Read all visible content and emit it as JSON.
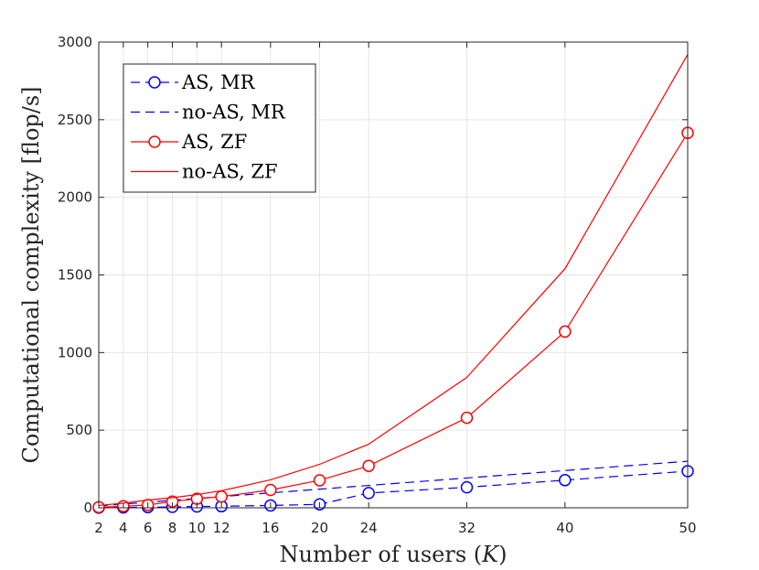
{
  "chart_data": {
    "type": "line",
    "title": "",
    "xlabel": "Number of users (K)",
    "xlabel_parts": [
      "Number of users (",
      "K",
      ")"
    ],
    "ylabel": "Computational complexity [flop/s]",
    "xlim": [
      2,
      50
    ],
    "ylim": [
      0,
      3000
    ],
    "x_ticks": [
      2,
      4,
      6,
      8,
      10,
      12,
      16,
      20,
      24,
      32,
      40,
      50
    ],
    "y_ticks": [
      0,
      500,
      1000,
      1500,
      2000,
      2500,
      3000
    ],
    "grid": true,
    "legend_position": "top-left",
    "x": [
      2,
      4,
      6,
      8,
      10,
      12,
      16,
      20,
      24,
      32,
      40,
      50
    ],
    "series": [
      {
        "name": "AS, MR",
        "color": "#0000ff",
        "line_style": "dashed",
        "marker": "circle",
        "values": [
          1,
          2,
          4,
          6,
          8,
          10,
          15,
          22,
          95,
          132,
          178,
          236
        ]
      },
      {
        "name": "no-AS, MR",
        "color": "#0000ff",
        "line_style": "dashed",
        "marker": "none",
        "values": [
          12,
          24,
          36,
          48,
          60,
          72,
          96,
          120,
          144,
          192,
          240,
          300
        ]
      },
      {
        "name": "AS, ZF",
        "color": "#ff0000",
        "line_style": "solid",
        "marker": "circle",
        "values": [
          4,
          10,
          18,
          40,
          58,
          72,
          115,
          177,
          270,
          580,
          1135,
          2415
        ]
      },
      {
        "name": "no-AS, ZF",
        "color": "#ff0000",
        "line_style": "solid",
        "marker": "none",
        "values": [
          15,
          30,
          50,
          65,
          85,
          110,
          180,
          280,
          410,
          840,
          1540,
          2920
        ]
      }
    ]
  }
}
